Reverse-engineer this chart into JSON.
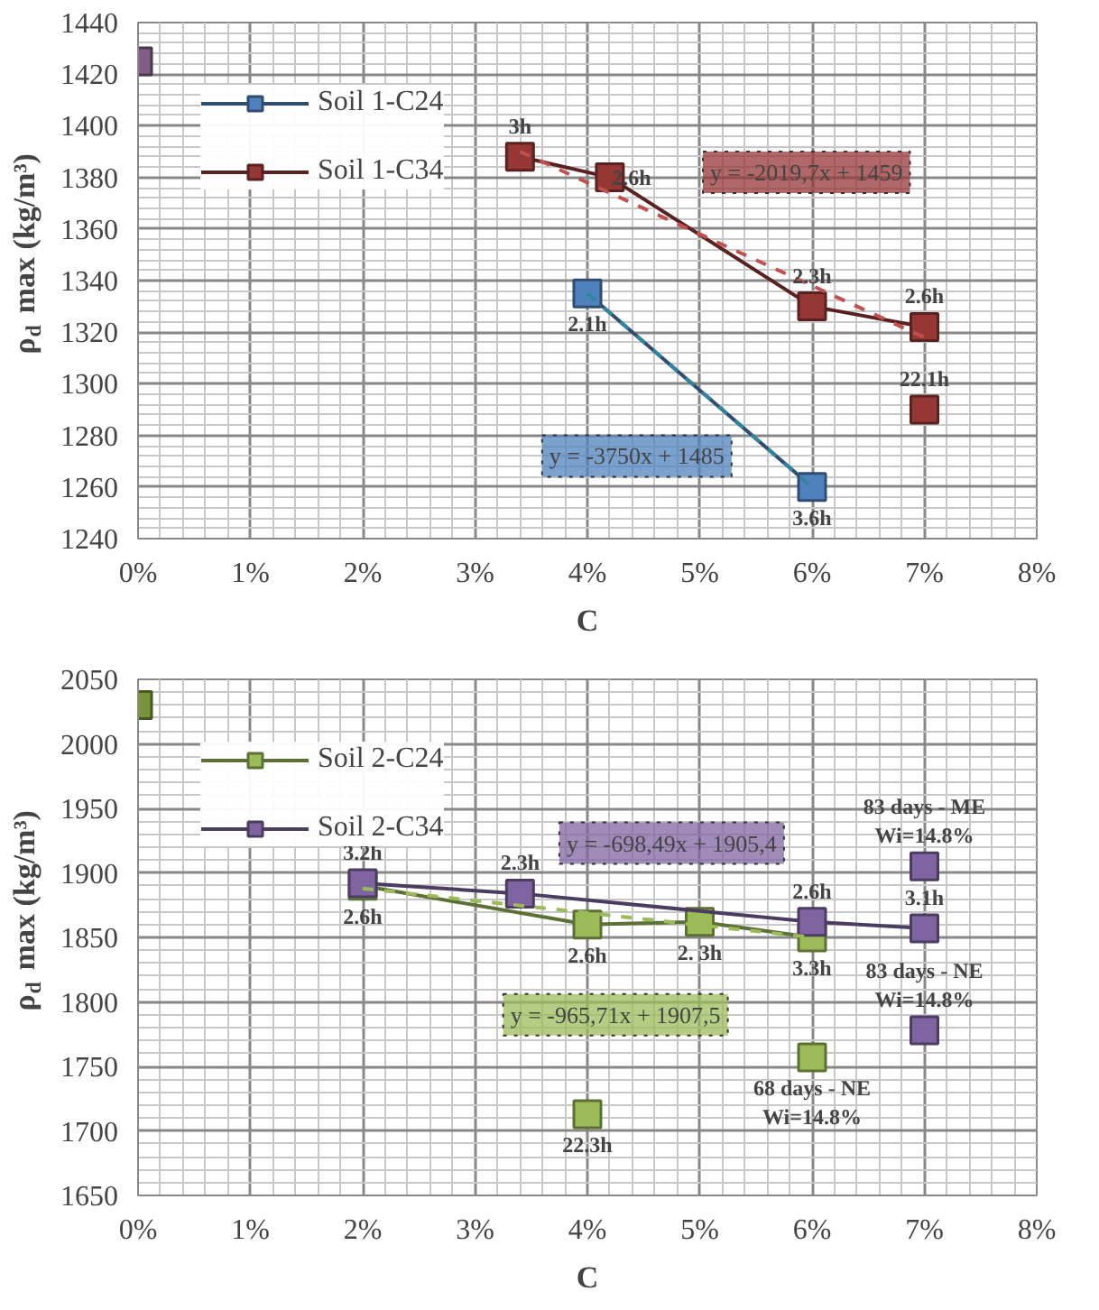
{
  "chart_data": [
    {
      "type": "line",
      "xlabel": "C",
      "ylabel": "ρ$_{d}$ max (kg/m³)",
      "marker": "square",
      "grid": true,
      "legend": "top left",
      "xlim": [
        0,
        0.08
      ],
      "ylim": [
        1240,
        1440
      ],
      "xticks": [
        {
          "value": 0,
          "label": "0%"
        },
        {
          "value": 0.01,
          "label": "1%"
        },
        {
          "value": 0.02,
          "label": "2%"
        },
        {
          "value": 0.03,
          "label": "3%"
        },
        {
          "value": 0.04,
          "label": "4%"
        },
        {
          "value": 0.05,
          "label": "5%"
        },
        {
          "value": 0.06,
          "label": "6%"
        },
        {
          "value": 0.07,
          "label": "7%"
        },
        {
          "value": 0.08,
          "label": "8%"
        }
      ],
      "yticks": [
        1240,
        1260,
        1280,
        1300,
        1320,
        1340,
        1360,
        1380,
        1400,
        1420,
        1440
      ],
      "series": [
        {
          "name": "Soil 1-C24",
          "color": "#4f81bd",
          "x": [
            0.04,
            0.06
          ],
          "values": [
            1335,
            1260
          ]
        },
        {
          "name": "Soil 1-C34",
          "color": "#953735",
          "x": [
            0.034,
            0.042,
            0.06,
            0.07
          ],
          "values": [
            1388,
            1380,
            1330,
            1322
          ]
        },
        {
          "line_style": "dashed",
          "marker": "none",
          "color": "#31859c",
          "x": [
            0.04,
            0.06
          ],
          "values": [
            1335,
            1260
          ]
        },
        {
          "line_style": "dashed",
          "marker": "none",
          "color": "#c0504d",
          "x": [
            0.034,
            0.07
          ],
          "values": [
            1390,
            1318
          ]
        },
        {
          "type": "scatter",
          "color": "#7f6084",
          "x": [
            0
          ],
          "values": [
            1425
          ]
        },
        {
          "type": "scatter",
          "color": "#953735",
          "x": [
            0.07
          ],
          "values": [
            1290
          ]
        }
      ],
      "annotations": [
        {
          "text": "2.1h",
          "x": 0.04,
          "y": 1335
        },
        {
          "text": "3.6h",
          "x": 0.06,
          "y": 1260
        },
        {
          "text": "3h",
          "x": 0.034,
          "y": 1388
        },
        {
          "text": "2.6h",
          "x": 0.042,
          "y": 1380
        },
        {
          "text": "2.3h",
          "x": 0.06,
          "y": 1330
        },
        {
          "text": "2.6h",
          "x": 0.07,
          "y": 1322
        },
        {
          "text": "22.1h",
          "x": 0.07,
          "y": 1290
        },
        "y = -2019,7x + 1459",
        "y = -3750x + 1485"
      ]
    },
    {
      "type": "line",
      "xlabel": "C",
      "ylabel": "ρ$_{d}$ max (kg/m³)",
      "marker": "square",
      "grid": true,
      "legend": "top left",
      "xlim": [
        0,
        0.08
      ],
      "ylim": [
        1650,
        2050
      ],
      "xticks": [
        {
          "value": 0,
          "label": "0%"
        },
        {
          "value": 0.01,
          "label": "1%"
        },
        {
          "value": 0.02,
          "label": "2%"
        },
        {
          "value": 0.03,
          "label": "3%"
        },
        {
          "value": 0.04,
          "label": "4%"
        },
        {
          "value": 0.05,
          "label": "5%"
        },
        {
          "value": 0.06,
          "label": "6%"
        },
        {
          "value": 0.07,
          "label": "7%"
        },
        {
          "value": 0.08,
          "label": "8%"
        }
      ],
      "yticks": [
        1650,
        1700,
        1750,
        1800,
        1850,
        1900,
        1950,
        2000,
        2050
      ],
      "series": [
        {
          "name": "Soil 2-C24",
          "color": "#9bbb59",
          "x": [
            0.02,
            0.04,
            0.05,
            0.06
          ],
          "values": [
            1890,
            1860,
            1862,
            1850
          ]
        },
        {
          "name": "Soil 2-C34",
          "color": "#8064a2",
          "x": [
            0.02,
            0.034,
            0.06,
            0.07
          ],
          "values": [
            1892,
            1884,
            1862,
            1857
          ]
        },
        {
          "line_style": "dashed",
          "marker": "none",
          "color": "#9bbb59",
          "x": [
            0.02,
            0.06
          ],
          "values": [
            1888,
            1850
          ]
        },
        {
          "type": "scatter",
          "color": "#77933c",
          "x": [
            0
          ],
          "values": [
            2030
          ]
        },
        {
          "type": "scatter",
          "color": "#9bbb59",
          "x": [
            0.04,
            0.06
          ],
          "values": [
            1713,
            1757
          ]
        },
        {
          "type": "scatter",
          "color": "#8064a2",
          "x": [
            0.07,
            0.07
          ],
          "values": [
            1905,
            1778
          ]
        }
      ],
      "annotations": [
        {
          "text": "2.6h",
          "x": 0.02,
          "y": 1890
        },
        {
          "text": "2.6h",
          "x": 0.04,
          "y": 1860
        },
        {
          "text": "2. 3h",
          "x": 0.05,
          "y": 1862
        },
        {
          "text": "3.3h",
          "x": 0.06,
          "y": 1850
        },
        {
          "text": "3.2h",
          "x": 0.02,
          "y": 1892
        },
        {
          "text": "2.3h",
          "x": 0.034,
          "y": 1884
        },
        {
          "text": "2.6h",
          "x": 0.06,
          "y": 1862
        },
        {
          "text": "3.1h",
          "x": 0.07,
          "y": 1857
        },
        {
          "text": "22.3h",
          "x": 0.04,
          "y": 1713
        },
        {
          "text": "68 days - NE\nWi=14.8%",
          "x": 0.06,
          "y": 1757
        },
        {
          "text": "83 days - ME\nWi=14.8%",
          "x": 0.07,
          "y": 1905
        },
        {
          "text": "83 days - NE\nWi=14.8%",
          "x": 0.07,
          "y": 1778
        },
        "y = -698,49x + 1905,4",
        "y = -965,71x + 1907,5"
      ]
    }
  ]
}
